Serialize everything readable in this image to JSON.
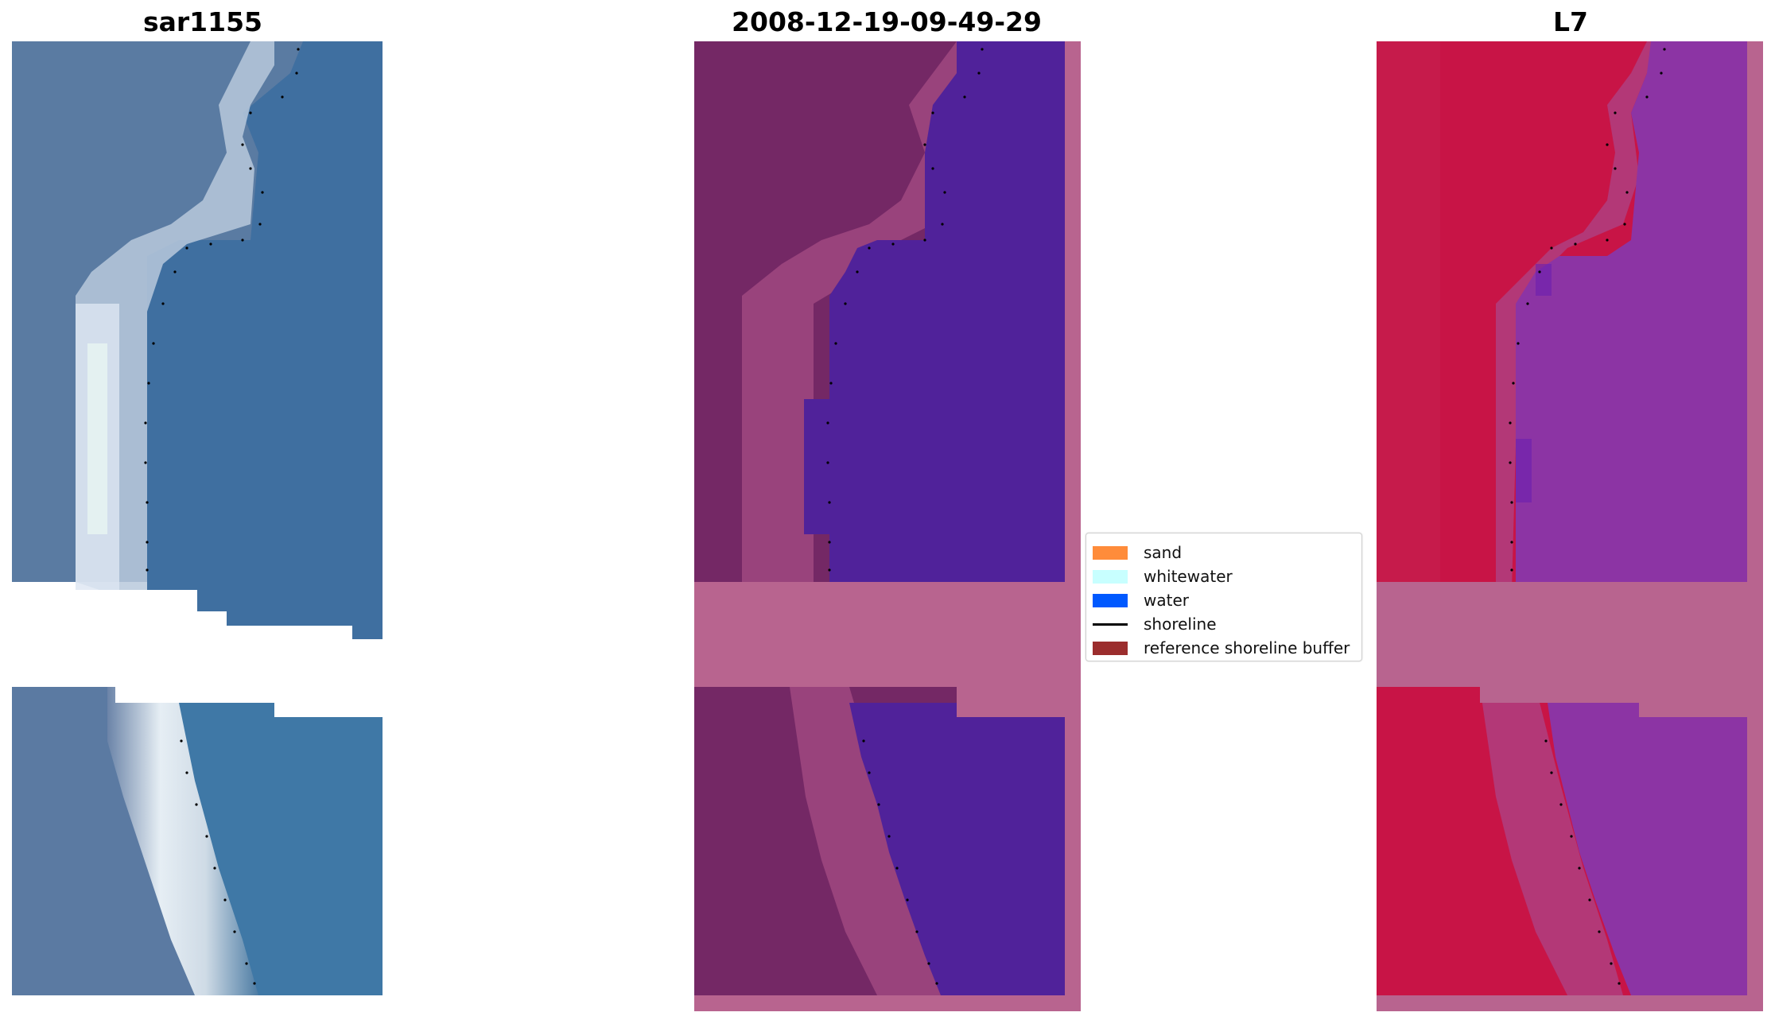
{
  "panels": [
    {
      "title": "sar1155",
      "kind": "rgb"
    },
    {
      "title": "2008-12-19-09-49-29",
      "kind": "classified"
    },
    {
      "title": "L7",
      "kind": "mndwi"
    }
  ],
  "legend": {
    "items": [
      {
        "label": "sand",
        "color": "#ff8c3a",
        "type": "patch"
      },
      {
        "label": "whitewater",
        "color": "#c8ffff",
        "type": "patch"
      },
      {
        "label": "water",
        "color": "#0059ff",
        "type": "patch"
      },
      {
        "label": "shoreline",
        "color": "#000000",
        "type": "line"
      },
      {
        "label": "reference shoreline buffer",
        "color": "#9b2d2d",
        "type": "patch"
      }
    ]
  },
  "colors": {
    "rgb_water": "#3f6f9e",
    "rgb_land": "#5c7aa0",
    "rgb_sand": "#d8e2ee",
    "class_land": "#742865",
    "class_water": "#50229a",
    "class_buffer": "#b8648f",
    "mndwi_land": "#c81446",
    "mndwi_water": "#8c34a4",
    "mndwi_buffer": "#b8648f"
  }
}
